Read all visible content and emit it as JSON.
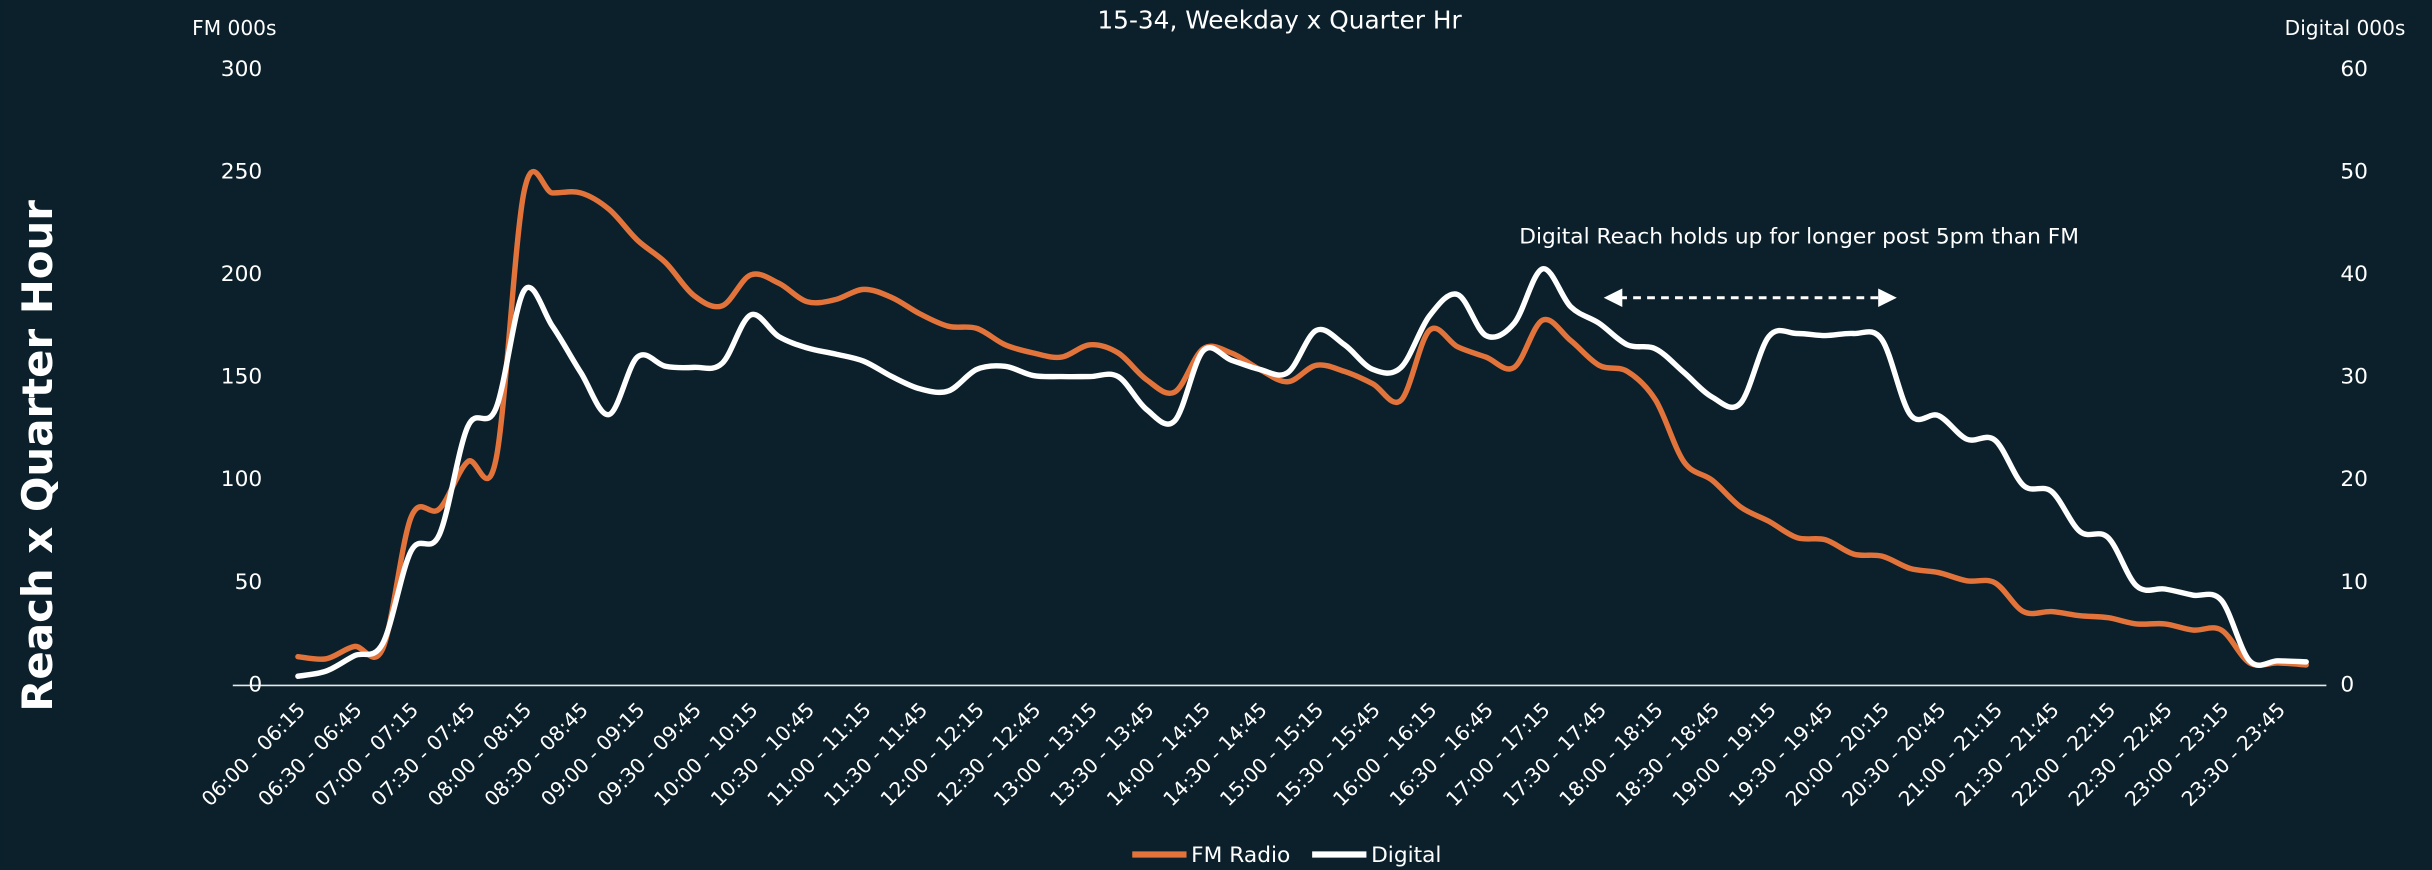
{
  "chart_data": {
    "type": "line",
    "title": "15-34, Weekday x Quarter Hr",
    "y_axis_title": "Reach x Quarter Hour",
    "ylabel": "FM 000s",
    "y2label": "Digital 000s",
    "annotation": "Digital Reach holds up for longer post 5pm than FM",
    "categories": [
      "06:00 - 06:15",
      null,
      "06:30 - 06:45",
      null,
      "07:00 - 07:15",
      null,
      "07:30 - 07:45",
      null,
      "08:00 - 08:15",
      null,
      "08:30 - 08:45",
      null,
      "09:00 - 09:15",
      null,
      "09:30 - 09:45",
      null,
      "10:00 - 10:15",
      null,
      "10:30 - 10:45",
      null,
      "11:00 - 11:15",
      null,
      "11:30 - 11:45",
      null,
      "12:00 - 12:15",
      null,
      "12:30 - 12:45",
      null,
      "13:00 - 13:15",
      null,
      "13:30 - 13:45",
      null,
      "14:00 - 14:15",
      null,
      "14:30 - 14:45",
      null,
      "15:00 - 15:15",
      null,
      "15:30 - 15:45",
      null,
      "16:00 - 16:15",
      null,
      "16:30 - 16:45",
      null,
      "17:00 - 17:15",
      null,
      "17:30 - 17:45",
      null,
      "18:00 - 18:15",
      null,
      "18:30 - 18:45",
      null,
      "19:00 - 19:15",
      null,
      "19:30 - 19:45",
      null,
      "20:00 - 20:15",
      null,
      "20:30 - 20:45",
      null,
      "21:00 - 21:15",
      null,
      "21:30 - 21:45",
      null,
      "22:00 - 22:15",
      null,
      "22:30 - 22:45",
      null,
      "23:00 - 23:15",
      null,
      "23:30 - 23:45",
      null
    ],
    "series": [
      {
        "name": "FM Radio",
        "color": "#e2743b",
        "axis": "y",
        "values": [
          14,
          13,
          19,
          18,
          82,
          86,
          109,
          110,
          241,
          240,
          240,
          232,
          217,
          206,
          190,
          185,
          200,
          196,
          187,
          188,
          193,
          189,
          181,
          175,
          174,
          166,
          162,
          160,
          166,
          162,
          149,
          143,
          164,
          162,
          154,
          148,
          156,
          153,
          147,
          139,
          173,
          165,
          160,
          155,
          178,
          168,
          156,
          153,
          139,
          109,
          100,
          87,
          80,
          72,
          71,
          64,
          63,
          57,
          55,
          51,
          50,
          36,
          36,
          34,
          33,
          30,
          30,
          27,
          27,
          11,
          11,
          10
        ]
      },
      {
        "name": "Digital",
        "color": "#ffffff",
        "axis": "y2",
        "values": [
          0.9,
          1.4,
          2.9,
          4.1,
          13.1,
          14.7,
          25.2,
          27,
          38.5,
          35,
          30.5,
          26.4,
          32,
          31.1,
          31,
          31.4,
          36.1,
          34,
          32.9,
          32.3,
          31.6,
          30.1,
          28.9,
          28.7,
          30.8,
          31.1,
          30.2,
          30.1,
          30.1,
          30.1,
          26.9,
          25.8,
          32.6,
          31.7,
          30.8,
          30.5,
          34.6,
          33.2,
          30.8,
          31,
          36,
          38.1,
          34.1,
          35.3,
          40.6,
          36.9,
          35.3,
          33.2,
          32.8,
          30.5,
          28.1,
          27.5,
          34,
          34.3,
          34.1,
          34.3,
          33.7,
          26.4,
          26.3,
          24,
          23.9,
          19.5,
          18.9,
          15,
          14.4,
          9.7,
          9.4,
          8.8,
          8.3,
          2.4,
          2.4,
          2.3
        ]
      }
    ],
    "ylim": [
      0,
      300
    ],
    "yticks": [
      0,
      50,
      100,
      150,
      200,
      250,
      300
    ],
    "y2lim": [
      0,
      60
    ],
    "y2ticks": [
      0,
      10,
      20,
      30,
      40,
      50,
      60
    ],
    "grid": false
  }
}
